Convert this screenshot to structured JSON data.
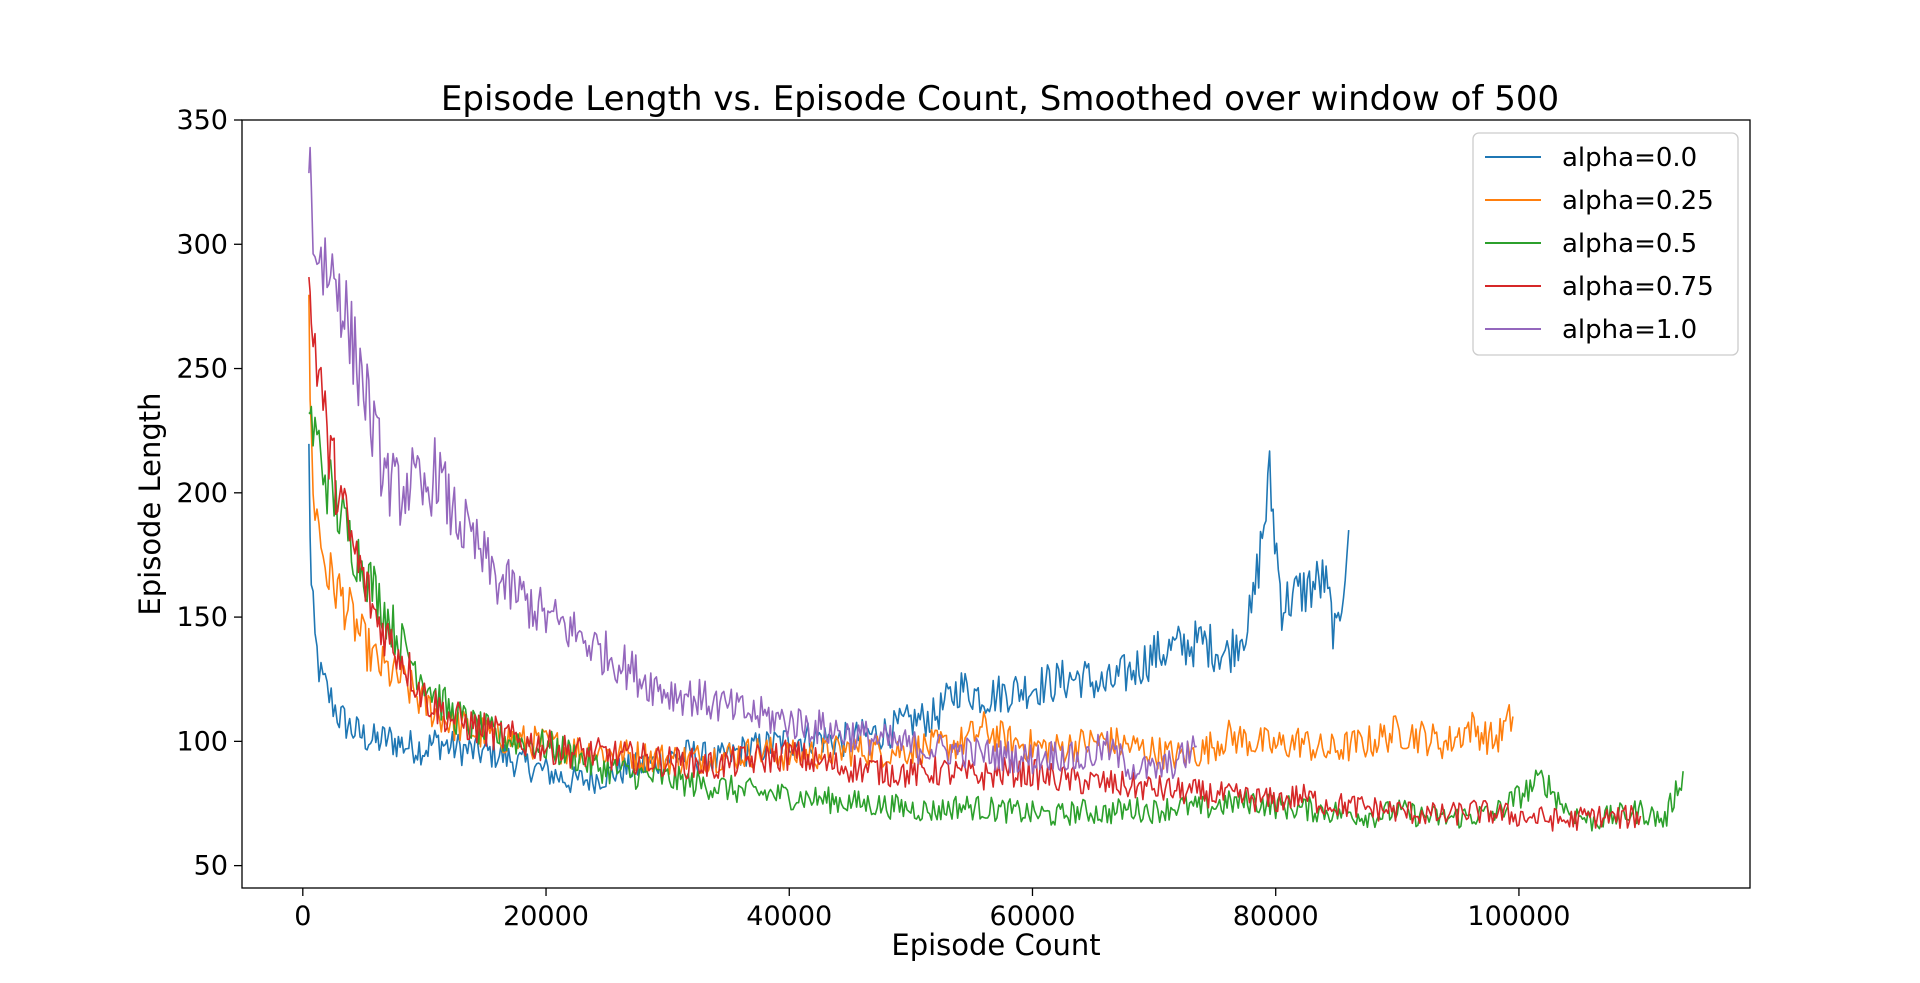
{
  "chart_data": {
    "type": "line",
    "title": "Episode Length vs. Episode Count, Smoothed over window of 500",
    "xlabel": "Episode Count",
    "ylabel": "Episode Length",
    "xlim": [
      -5000,
      119000
    ],
    "ylim": [
      41,
      350
    ],
    "xticks": [
      0,
      20000,
      40000,
      60000,
      80000,
      100000
    ],
    "yticks": [
      50,
      100,
      150,
      200,
      250,
      300,
      350
    ],
    "legend_position": "top-right",
    "grid": false,
    "series": [
      {
        "name": "alpha=0.0",
        "color": "#1f77b4",
        "x": [
          500,
          700,
          1000,
          1500,
          2000,
          2500,
          3000,
          4000,
          5000,
          6000,
          7000,
          8000,
          9000,
          10000,
          11000,
          12000,
          14000,
          16000,
          18000,
          20000,
          22000,
          24000,
          26000,
          28000,
          30000,
          32000,
          34000,
          36000,
          38000,
          40000,
          42000,
          44000,
          46000,
          48000,
          50000,
          52000,
          54000,
          56000,
          58000,
          60000,
          62000,
          64000,
          66000,
          68000,
          70000,
          72000,
          74000,
          76000,
          78000,
          79500,
          80500,
          82000,
          84000,
          85000,
          86000
        ],
        "y": [
          215,
          160,
          140,
          125,
          120,
          115,
          110,
          105,
          102,
          100,
          101,
          99,
          98,
          97,
          100,
          98,
          96,
          95,
          91,
          88,
          84,
          85,
          88,
          90,
          93,
          95,
          92,
          96,
          98,
          100,
          102,
          100,
          102,
          104,
          108,
          110,
          122,
          118,
          120,
          122,
          124,
          126,
          122,
          128,
          135,
          138,
          140,
          135,
          150,
          205,
          155,
          160,
          165,
          140,
          185
        ]
      },
      {
        "name": "alpha=0.25",
        "color": "#ff7f0e",
        "x": [
          500,
          700,
          1000,
          1500,
          2000,
          3000,
          4000,
          5000,
          6000,
          7000,
          8000,
          10000,
          12000,
          14000,
          16000,
          18000,
          20000,
          22000,
          24000,
          26000,
          28000,
          30000,
          32000,
          34000,
          36000,
          38000,
          40000,
          42000,
          44000,
          46000,
          48000,
          50000,
          52000,
          54000,
          56000,
          58000,
          60000,
          62000,
          64000,
          66000,
          68000,
          70000,
          72000,
          74000,
          76000,
          78000,
          80000,
          82000,
          84000,
          86000,
          88000,
          90000,
          92000,
          94000,
          96000,
          98000,
          99500
        ],
        "y": [
          265,
          220,
          195,
          180,
          168,
          160,
          150,
          140,
          132,
          128,
          125,
          115,
          108,
          104,
          102,
          100,
          99,
          97,
          96,
          95,
          94,
          93,
          93,
          94,
          95,
          96,
          94,
          95,
          96,
          97,
          96,
          97,
          98,
          99,
          105,
          100,
          98,
          97,
          99,
          100,
          98,
          96,
          94,
          96,
          102,
          100,
          98,
          100,
          96,
          98,
          100,
          104,
          102,
          99,
          106,
          100,
          110
        ]
      },
      {
        "name": "alpha=0.5",
        "color": "#2ca02c",
        "x": [
          500,
          700,
          1000,
          1500,
          2000,
          3000,
          4000,
          5000,
          6000,
          7000,
          8000,
          10000,
          12000,
          14000,
          16000,
          18000,
          20000,
          22000,
          24000,
          26000,
          28000,
          30000,
          32000,
          34000,
          36000,
          38000,
          40000,
          42000,
          44000,
          46000,
          48000,
          50000,
          52000,
          54000,
          56000,
          58000,
          60000,
          62000,
          64000,
          66000,
          68000,
          70000,
          72000,
          74000,
          76000,
          78000,
          80000,
          82000,
          84000,
          86000,
          88000,
          90000,
          92000,
          94000,
          96000,
          98000,
          100000,
          102000,
          104000,
          106000,
          108000,
          110000,
          112000,
          113500
        ],
        "y": [
          235,
          228,
          222,
          215,
          205,
          192,
          180,
          170,
          160,
          150,
          140,
          125,
          112,
          106,
          102,
          100,
          98,
          95,
          90,
          88,
          86,
          85,
          83,
          82,
          80,
          79,
          78,
          77,
          76,
          75,
          74,
          73,
          72,
          74,
          73,
          72,
          71,
          70,
          72,
          71,
          73,
          72,
          74,
          73,
          75,
          76,
          74,
          73,
          72,
          71,
          70,
          72,
          70,
          69,
          70,
          71,
          78,
          85,
          72,
          68,
          70,
          72,
          68,
          88
        ]
      },
      {
        "name": "alpha=0.75",
        "color": "#d62728",
        "x": [
          500,
          700,
          1000,
          1500,
          2000,
          3000,
          4000,
          5000,
          6000,
          7000,
          8000,
          10000,
          12000,
          14000,
          16000,
          18000,
          20000,
          22000,
          24000,
          26000,
          28000,
          30000,
          32000,
          34000,
          36000,
          38000,
          40000,
          42000,
          44000,
          46000,
          48000,
          50000,
          52000,
          54000,
          56000,
          58000,
          60000,
          62000,
          64000,
          66000,
          68000,
          70000,
          72000,
          74000,
          76000,
          78000,
          80000,
          82000,
          84000,
          86000,
          88000,
          90000,
          92000,
          94000,
          96000,
          98000,
          100000,
          102000,
          104000,
          106000,
          108000,
          110000
        ],
        "y": [
          280,
          270,
          260,
          245,
          220,
          200,
          180,
          165,
          150,
          142,
          135,
          118,
          110,
          106,
          103,
          100,
          98,
          96,
          95,
          94,
          93,
          92,
          91,
          90,
          92,
          93,
          95,
          92,
          90,
          89,
          88,
          87,
          88,
          87,
          86,
          88,
          87,
          85,
          84,
          83,
          82,
          81,
          80,
          79,
          78,
          77,
          76,
          78,
          75,
          74,
          73,
          72,
          71,
          70,
          72,
          71,
          70,
          69,
          68,
          70,
          69,
          70
        ]
      },
      {
        "name": "alpha=1.0",
        "color": "#9467bd",
        "x": [
          500,
          700,
          1000,
          1500,
          2000,
          3000,
          4000,
          5000,
          6000,
          7000,
          8000,
          9000,
          10000,
          11000,
          12000,
          14000,
          16000,
          18000,
          20000,
          22000,
          24000,
          26000,
          28000,
          30000,
          32000,
          34000,
          36000,
          38000,
          40000,
          42000,
          44000,
          46000,
          48000,
          50000,
          52000,
          54000,
          56000,
          58000,
          60000,
          62000,
          64000,
          66000,
          68000,
          70000,
          72000,
          73500
        ],
        "y": [
          335,
          320,
          300,
          295,
          290,
          285,
          260,
          245,
          220,
          205,
          200,
          205,
          198,
          210,
          195,
          180,
          165,
          158,
          150,
          145,
          138,
          132,
          125,
          120,
          118,
          115,
          112,
          110,
          108,
          106,
          104,
          102,
          100,
          98,
          97,
          96,
          95,
          94,
          93,
          95,
          92,
          98,
          90,
          88,
          92,
          98
        ]
      }
    ]
  }
}
